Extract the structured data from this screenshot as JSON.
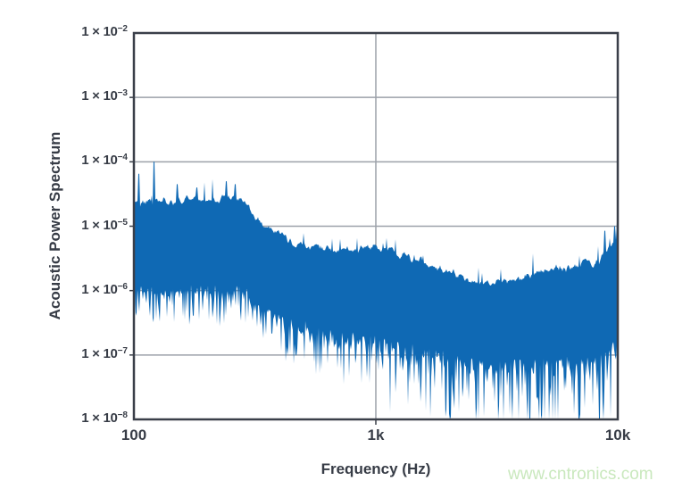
{
  "watermark": {
    "text": "www.cntronics.com",
    "color": "#c9e8bd"
  },
  "chart_data": {
    "type": "area",
    "title": "",
    "x_axis": {
      "label": "Frequency (Hz)",
      "scale": "log",
      "min": 100,
      "max": 10000,
      "ticks": [
        {
          "value": 100,
          "label": "100"
        },
        {
          "value": 1000,
          "label": "1k"
        },
        {
          "value": 10000,
          "label": "10k"
        }
      ]
    },
    "y_axis": {
      "label": "Acoustic Power Spectrum",
      "scale": "log",
      "min": 1e-08,
      "max": 0.01,
      "ticks": [
        {
          "exponent": -2,
          "mantissa": "1 × 10",
          "exp_label": "−2"
        },
        {
          "exponent": -3,
          "mantissa": "1 × 10",
          "exp_label": "−3"
        },
        {
          "exponent": -4,
          "mantissa": "1 × 10",
          "exp_label": "−4"
        },
        {
          "exponent": -5,
          "mantissa": "1 × 10",
          "exp_label": "−5"
        },
        {
          "exponent": -6,
          "mantissa": "1 × 10",
          "exp_label": "−6"
        },
        {
          "exponent": -7,
          "mantissa": "1 × 10",
          "exp_label": "−7"
        },
        {
          "exponent": -8,
          "mantissa": "1 × 10",
          "exp_label": "−8"
        }
      ],
      "gridline_exponents": [
        -3,
        -4,
        -5,
        -6,
        -7
      ]
    },
    "grid": {
      "line_color": "#9ca1a9",
      "frame_color": "#3a3f49"
    },
    "series": [
      {
        "name": "acoustic-power-spectrum",
        "color": "#0f69b4",
        "description": "Noisy acoustic power spectral density band; values are log10(power) envelope control points [log10(freq), log10(band top), log10(typical band bottom)]",
        "envelope": [
          [
            2.0,
            -4.62,
            -5.8
          ],
          [
            2.3,
            -4.58,
            -5.78
          ],
          [
            2.45,
            -4.57,
            -5.8
          ],
          [
            2.52,
            -4.93,
            -6.0
          ],
          [
            2.66,
            -5.27,
            -6.3
          ],
          [
            2.85,
            -5.38,
            -6.5
          ],
          [
            3.0,
            -5.32,
            -6.55
          ],
          [
            3.2,
            -5.55,
            -6.7
          ],
          [
            3.4,
            -5.87,
            -6.9
          ],
          [
            3.55,
            -5.85,
            -6.95
          ],
          [
            3.75,
            -5.66,
            -6.9
          ],
          [
            3.92,
            -5.55,
            -6.85
          ],
          [
            4.0,
            -5.15,
            -6.6
          ]
        ],
        "spikes_up": [
          [
            104,
            6.5e-05
          ],
          [
            121,
            0.0001
          ],
          [
            150,
            4.5e-05
          ],
          [
            182,
            4e-05
          ],
          [
            240,
            5e-05
          ],
          [
            262,
            4.5e-05
          ],
          [
            8800,
            8.5e-06
          ],
          [
            9700,
            1e-05
          ],
          [
            9950,
            1.15e-05
          ]
        ],
        "dips_down": [
          [
            160,
            4e-07
          ],
          [
            205,
            3.5e-07
          ],
          [
            550,
            1.5e-07
          ],
          [
            1150,
            1.3e-08
          ],
          [
            2050,
            1.1e-08
          ],
          [
            2600,
            1e-08
          ],
          [
            4300,
            1e-08
          ],
          [
            7000,
            1.2e-08
          ]
        ],
        "noise": {
          "seed": 42,
          "top_jitter": 0.1,
          "up_spike_prob": 0.04,
          "up_spike_amp": 0.3,
          "bottom_base": 0.12,
          "bottom_rough": 0.18,
          "tail_left": 0.55,
          "tail_right": 1.45
        }
      }
    ]
  }
}
